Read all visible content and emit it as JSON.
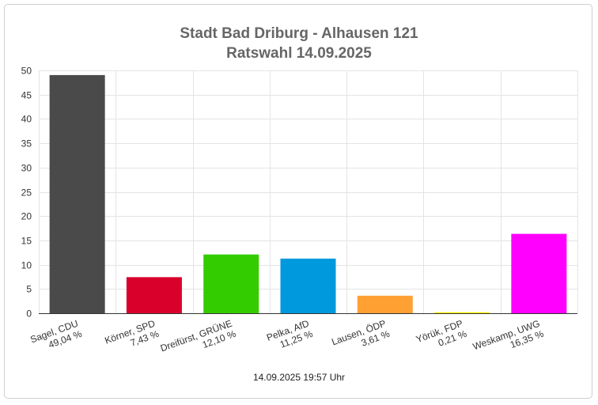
{
  "chart_data": {
    "type": "bar",
    "title": "Stadt Bad Driburg - Alhausen 121",
    "subtitle": "Ratswahl 14.09.2025",
    "categories": [
      "Sagel, CDU",
      "Körner, SPD",
      "Dreifürst, GRÜNE",
      "Pelka, AfD",
      "Lausen, ÖDP",
      "Yörük, FDP",
      "Weskamp, UWG"
    ],
    "category_sublabels": [
      "49,04 %",
      "7,43 %",
      "12,10 %",
      "11,25 %",
      "3,61 %",
      "0,21 %",
      "16,35 %"
    ],
    "values": [
      49.04,
      7.43,
      12.1,
      11.25,
      3.61,
      0.21,
      16.35
    ],
    "colors": [
      "#4a4a4a",
      "#d9002b",
      "#33cc00",
      "#0099dd",
      "#ffa033",
      "#ffee00",
      "#ff00ff"
    ],
    "ylim": [
      0,
      50
    ],
    "yticks": [
      0,
      5,
      10,
      15,
      20,
      25,
      30,
      35,
      40,
      45,
      50
    ],
    "grid": true,
    "xlabel": "",
    "ylabel": "",
    "footer": "14.09.2025 19:57 Uhr"
  }
}
